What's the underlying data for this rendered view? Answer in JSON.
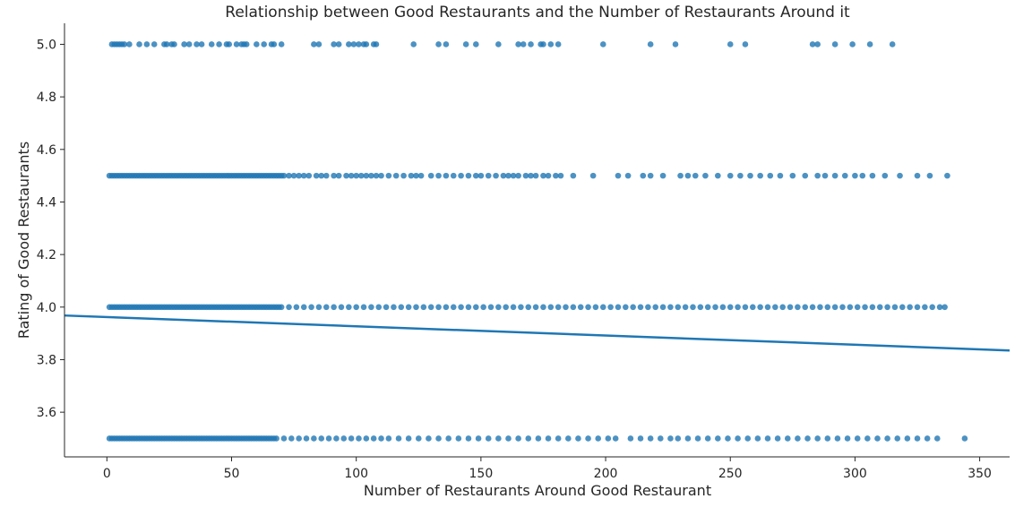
{
  "chart_data": {
    "type": "scatter",
    "title": "Relationship between Good Restaurants and the Number of Restaurants Around it",
    "xlabel": "Number of Restaurants Around Good Restaurant",
    "ylabel": "Rating of Good Restaurants",
    "xlim": [
      -17,
      362
    ],
    "ylim": [
      3.43,
      5.08
    ],
    "xticks": [
      0,
      50,
      100,
      150,
      200,
      250,
      300,
      350
    ],
    "yticks": [
      3.6,
      3.8,
      4.0,
      4.2,
      4.4,
      4.6,
      4.8,
      5.0
    ],
    "grid": false,
    "point_color": "#1f77b4",
    "line_color": "#1f77b4",
    "series": [
      {
        "y": 5.0,
        "x": [
          2,
          3,
          4,
          5,
          6,
          7,
          9,
          13,
          16,
          19,
          23,
          24,
          26,
          27,
          31,
          33,
          36,
          38,
          42,
          45,
          48,
          49,
          52,
          54,
          55,
          56,
          60,
          63,
          66,
          67,
          70,
          83,
          85,
          91,
          93,
          97,
          99,
          101,
          103,
          104,
          107,
          108,
          123,
          133,
          136,
          144,
          148,
          157,
          165,
          167,
          170,
          174,
          175,
          178,
          181,
          199,
          218,
          228,
          250,
          256,
          283,
          285,
          292,
          299,
          306,
          315
        ]
      },
      {
        "y": 4.5,
        "x": [
          1,
          2,
          3,
          4,
          5,
          6,
          7,
          8,
          9,
          10,
          11,
          12,
          13,
          14,
          15,
          16,
          17,
          18,
          19,
          20,
          21,
          22,
          23,
          24,
          25,
          26,
          27,
          28,
          29,
          30,
          31,
          32,
          33,
          34,
          35,
          36,
          37,
          38,
          39,
          40,
          41,
          42,
          43,
          44,
          45,
          46,
          47,
          48,
          49,
          50,
          51,
          52,
          53,
          54,
          55,
          56,
          57,
          58,
          59,
          60,
          61,
          62,
          63,
          64,
          65,
          66,
          67,
          68,
          69,
          70,
          71,
          73,
          75,
          77,
          79,
          81,
          84,
          86,
          88,
          91,
          93,
          96,
          98,
          100,
          102,
          104,
          106,
          108,
          110,
          113,
          116,
          119,
          122,
          124,
          126,
          130,
          133,
          136,
          139,
          142,
          145,
          148,
          150,
          153,
          156,
          159,
          161,
          163,
          165,
          168,
          170,
          172,
          175,
          177,
          180,
          182,
          187,
          195,
          205,
          209,
          215,
          218,
          223,
          230,
          233,
          236,
          240,
          245,
          250,
          254,
          258,
          262,
          266,
          270,
          275,
          280,
          285,
          288,
          292,
          296,
          300,
          303,
          307,
          312,
          318,
          325,
          330,
          337
        ]
      },
      {
        "y": 4.0,
        "x": [
          1,
          2,
          3,
          4,
          5,
          6,
          7,
          8,
          9,
          10,
          11,
          12,
          13,
          14,
          15,
          16,
          17,
          18,
          19,
          20,
          21,
          22,
          23,
          24,
          25,
          26,
          27,
          28,
          29,
          30,
          31,
          32,
          33,
          34,
          35,
          36,
          37,
          38,
          39,
          40,
          41,
          42,
          43,
          44,
          45,
          46,
          47,
          48,
          49,
          50,
          51,
          52,
          53,
          54,
          55,
          56,
          57,
          58,
          59,
          60,
          61,
          62,
          63,
          64,
          65,
          66,
          67,
          68,
          69,
          70,
          73,
          76,
          79,
          82,
          85,
          88,
          91,
          94,
          97,
          100,
          103,
          106,
          109,
          112,
          115,
          118,
          121,
          124,
          127,
          130,
          133,
          136,
          139,
          142,
          145,
          148,
          151,
          154,
          157,
          160,
          163,
          166,
          169,
          172,
          175,
          178,
          181,
          184,
          187,
          190,
          193,
          196,
          199,
          202,
          205,
          208,
          211,
          214,
          217,
          220,
          223,
          226,
          229,
          232,
          235,
          238,
          241,
          244,
          247,
          250,
          253,
          256,
          259,
          262,
          265,
          268,
          271,
          274,
          277,
          280,
          283,
          286,
          289,
          292,
          295,
          298,
          301,
          304,
          307,
          310,
          313,
          316,
          319,
          322,
          325,
          328,
          331,
          334,
          336
        ]
      },
      {
        "y": 3.5,
        "x": [
          1,
          2,
          3,
          4,
          5,
          6,
          7,
          8,
          9,
          10,
          11,
          12,
          13,
          14,
          15,
          16,
          17,
          18,
          19,
          20,
          21,
          22,
          23,
          24,
          25,
          26,
          27,
          28,
          29,
          30,
          31,
          32,
          33,
          34,
          35,
          36,
          37,
          38,
          39,
          40,
          41,
          42,
          43,
          44,
          45,
          46,
          47,
          48,
          49,
          50,
          51,
          52,
          53,
          54,
          55,
          56,
          57,
          58,
          59,
          60,
          61,
          62,
          63,
          64,
          65,
          66,
          67,
          68,
          71,
          74,
          77,
          80,
          83,
          86,
          89,
          92,
          95,
          98,
          101,
          104,
          107,
          110,
          113,
          117,
          121,
          125,
          129,
          133,
          137,
          141,
          145,
          149,
          153,
          157,
          161,
          165,
          169,
          173,
          177,
          181,
          185,
          189,
          193,
          197,
          201,
          204,
          210,
          214,
          218,
          222,
          226,
          229,
          233,
          237,
          241,
          245,
          249,
          253,
          257,
          261,
          265,
          269,
          273,
          277,
          281,
          285,
          289,
          293,
          297,
          301,
          305,
          309,
          313,
          317,
          321,
          325,
          329,
          333,
          344
        ]
      }
    ],
    "regression": {
      "x": [
        -17,
        362
      ],
      "y": [
        3.968,
        3.835
      ]
    }
  }
}
